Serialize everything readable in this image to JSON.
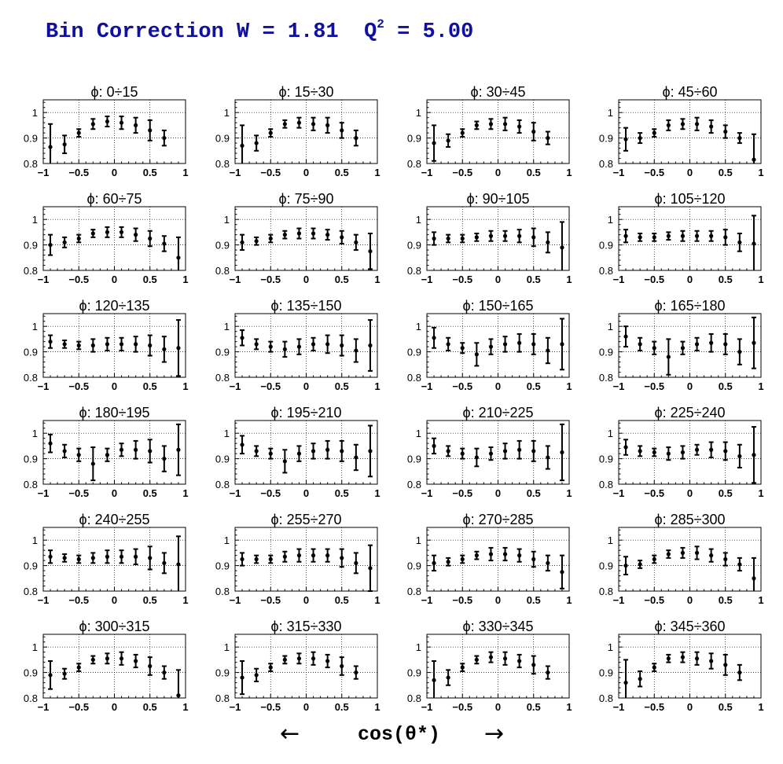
{
  "title": {
    "prefix": "Bin Correction W = 1.81  Q",
    "sup": "2",
    "suffix": " = 5.00"
  },
  "axis_caption": {
    "text": "cos(θ*)",
    "left_arrow": "←",
    "right_arrow": "→"
  },
  "chart_data": {
    "type": "scatter",
    "x_ticks": [
      "−1",
      "−0.5",
      "0",
      "0.5",
      "1"
    ],
    "y_ticks": [
      "0.8",
      "0.9",
      "1"
    ],
    "xlim": [
      -1,
      1
    ],
    "ylim": [
      0.8,
      1.05
    ],
    "grid": true,
    "x": [
      -0.9,
      -0.7,
      -0.5,
      -0.3,
      -0.1,
      0.1,
      0.3,
      0.5,
      0.7,
      0.9
    ],
    "panels": [
      {
        "title": "ϕ:  0÷15",
        "y": [
          0.865,
          0.875,
          0.92,
          0.955,
          0.965,
          0.96,
          0.95,
          0.93,
          0.9,
          null
        ],
        "err": [
          0.09,
          0.035,
          0.015,
          0.02,
          0.02,
          0.025,
          0.03,
          0.04,
          0.03,
          null
        ]
      },
      {
        "title": "ϕ:  15÷30",
        "y": [
          0.87,
          0.88,
          0.92,
          0.955,
          0.96,
          0.955,
          0.95,
          0.93,
          0.9,
          null
        ],
        "err": [
          0.08,
          0.03,
          0.015,
          0.015,
          0.02,
          0.025,
          0.03,
          0.03,
          0.03,
          null
        ]
      },
      {
        "title": "ϕ:  30÷45",
        "y": [
          0.88,
          0.89,
          0.92,
          0.95,
          0.955,
          0.955,
          0.945,
          0.925,
          0.9,
          null
        ],
        "err": [
          0.07,
          0.025,
          0.015,
          0.015,
          0.02,
          0.025,
          0.025,
          0.035,
          0.025,
          null
        ]
      },
      {
        "title": "ϕ:  45÷60",
        "y": [
          0.895,
          0.9,
          0.92,
          0.95,
          0.955,
          0.955,
          0.945,
          0.925,
          0.9,
          0.815
        ],
        "err": [
          0.045,
          0.02,
          0.015,
          0.02,
          0.02,
          0.025,
          0.025,
          0.025,
          0.02,
          0.1
        ]
      },
      {
        "title": "ϕ:  60÷75",
        "y": [
          0.9,
          0.91,
          0.925,
          0.945,
          0.95,
          0.95,
          0.94,
          0.925,
          0.905,
          0.85
        ],
        "err": [
          0.04,
          0.02,
          0.015,
          0.015,
          0.02,
          0.02,
          0.025,
          0.03,
          0.03,
          0.08
        ]
      },
      {
        "title": "ϕ:  75÷90",
        "y": [
          0.91,
          0.915,
          0.925,
          0.94,
          0.945,
          0.945,
          0.94,
          0.93,
          0.91,
          0.875
        ],
        "err": [
          0.03,
          0.015,
          0.015,
          0.015,
          0.02,
          0.02,
          0.02,
          0.025,
          0.03,
          0.07
        ]
      },
      {
        "title": "ϕ:  90÷105",
        "y": [
          0.925,
          0.925,
          0.925,
          0.93,
          0.935,
          0.935,
          0.935,
          0.93,
          0.91,
          0.89
        ],
        "err": [
          0.025,
          0.015,
          0.015,
          0.015,
          0.02,
          0.02,
          0.025,
          0.035,
          0.04,
          0.1
        ]
      },
      {
        "title": "ϕ: 105÷120",
        "y": [
          0.935,
          0.93,
          0.93,
          0.935,
          0.935,
          0.935,
          0.935,
          0.93,
          0.91,
          0.905
        ],
        "err": [
          0.025,
          0.015,
          0.015,
          0.015,
          0.02,
          0.02,
          0.02,
          0.03,
          0.035,
          0.11
        ]
      },
      {
        "title": "ϕ: 120÷135",
        "y": [
          0.94,
          0.93,
          0.925,
          0.925,
          0.93,
          0.93,
          0.93,
          0.925,
          0.91,
          0.915
        ],
        "err": [
          0.025,
          0.015,
          0.015,
          0.025,
          0.025,
          0.025,
          0.03,
          0.04,
          0.05,
          0.11
        ]
      },
      {
        "title": "ϕ: 135÷150",
        "y": [
          0.955,
          0.93,
          0.92,
          0.91,
          0.92,
          0.93,
          0.93,
          0.925,
          0.905,
          0.925
        ],
        "err": [
          0.03,
          0.02,
          0.02,
          0.03,
          0.03,
          0.025,
          0.035,
          0.04,
          0.045,
          0.1
        ]
      },
      {
        "title": "ϕ: 150÷165",
        "y": [
          0.955,
          0.93,
          0.915,
          0.89,
          0.92,
          0.93,
          0.935,
          0.93,
          0.905,
          0.93
        ],
        "err": [
          0.04,
          0.025,
          0.02,
          0.045,
          0.03,
          0.03,
          0.035,
          0.04,
          0.05,
          0.1
        ]
      },
      {
        "title": "ϕ: 165÷180",
        "y": [
          0.96,
          0.93,
          0.915,
          0.88,
          0.915,
          0.93,
          0.935,
          0.93,
          0.9,
          0.935
        ],
        "err": [
          0.04,
          0.025,
          0.025,
          0.07,
          0.025,
          0.025,
          0.035,
          0.04,
          0.05,
          0.1
        ]
      },
      {
        "title": "ϕ: 180÷195",
        "y": [
          0.96,
          0.93,
          0.915,
          0.88,
          0.915,
          0.935,
          0.935,
          0.93,
          0.9,
          0.935
        ],
        "err": [
          0.035,
          0.025,
          0.025,
          0.065,
          0.025,
          0.025,
          0.035,
          0.045,
          0.05,
          0.1
        ]
      },
      {
        "title": "ϕ: 195÷210",
        "y": [
          0.955,
          0.93,
          0.92,
          0.89,
          0.92,
          0.93,
          0.935,
          0.93,
          0.905,
          0.93
        ],
        "err": [
          0.035,
          0.02,
          0.02,
          0.045,
          0.03,
          0.03,
          0.035,
          0.04,
          0.05,
          0.1
        ]
      },
      {
        "title": "ϕ: 210÷225",
        "y": [
          0.95,
          0.93,
          0.92,
          0.905,
          0.92,
          0.93,
          0.935,
          0.93,
          0.905,
          0.925
        ],
        "err": [
          0.03,
          0.02,
          0.02,
          0.035,
          0.025,
          0.03,
          0.035,
          0.04,
          0.045,
          0.11
        ]
      },
      {
        "title": "ϕ: 225÷240",
        "y": [
          0.945,
          0.93,
          0.925,
          0.92,
          0.925,
          0.935,
          0.935,
          0.93,
          0.91,
          0.915
        ],
        "err": [
          0.03,
          0.02,
          0.015,
          0.025,
          0.025,
          0.02,
          0.03,
          0.035,
          0.045,
          0.11
        ]
      },
      {
        "title": "ϕ: 240÷255",
        "y": [
          0.935,
          0.93,
          0.925,
          0.93,
          0.935,
          0.935,
          0.935,
          0.93,
          0.91,
          0.905
        ],
        "err": [
          0.025,
          0.015,
          0.015,
          0.02,
          0.025,
          0.025,
          0.03,
          0.045,
          0.04,
          0.11
        ]
      },
      {
        "title": "ϕ: 255÷270",
        "y": [
          0.925,
          0.925,
          0.925,
          0.935,
          0.94,
          0.94,
          0.94,
          0.93,
          0.91,
          0.89
        ],
        "err": [
          0.025,
          0.015,
          0.015,
          0.02,
          0.025,
          0.025,
          0.025,
          0.035,
          0.04,
          0.09
        ]
      },
      {
        "title": "ϕ: 270÷285",
        "y": [
          0.91,
          0.915,
          0.925,
          0.94,
          0.945,
          0.945,
          0.94,
          0.925,
          0.91,
          0.875
        ],
        "err": [
          0.03,
          0.015,
          0.015,
          0.015,
          0.025,
          0.025,
          0.025,
          0.03,
          0.03,
          0.065
        ]
      },
      {
        "title": "ϕ: 285÷300",
        "y": [
          0.9,
          0.905,
          0.925,
          0.945,
          0.95,
          0.95,
          0.94,
          0.925,
          0.905,
          0.85
        ],
        "err": [
          0.035,
          0.015,
          0.015,
          0.015,
          0.02,
          0.025,
          0.025,
          0.025,
          0.025,
          0.08
        ]
      },
      {
        "title": "ϕ: 300÷315",
        "y": [
          0.89,
          0.895,
          0.92,
          0.95,
          0.955,
          0.955,
          0.945,
          0.925,
          0.9,
          0.81
        ],
        "err": [
          0.055,
          0.02,
          0.015,
          0.015,
          0.02,
          0.025,
          0.025,
          0.035,
          0.025,
          0.1
        ]
      },
      {
        "title": "ϕ: 315÷330",
        "y": [
          0.88,
          0.89,
          0.92,
          0.95,
          0.955,
          0.955,
          0.945,
          0.925,
          0.9,
          null
        ],
        "err": [
          0.065,
          0.025,
          0.015,
          0.015,
          0.02,
          0.025,
          0.025,
          0.035,
          0.025,
          null
        ]
      },
      {
        "title": "ϕ: 330÷345",
        "y": [
          0.87,
          0.88,
          0.92,
          0.95,
          0.96,
          0.955,
          0.945,
          0.93,
          0.9,
          null
        ],
        "err": [
          0.075,
          0.03,
          0.015,
          0.015,
          0.02,
          0.025,
          0.025,
          0.035,
          0.025,
          null
        ]
      },
      {
        "title": "ϕ: 345÷360",
        "y": [
          0.86,
          0.875,
          0.92,
          0.955,
          0.96,
          0.955,
          0.945,
          0.93,
          0.9,
          null
        ],
        "err": [
          0.09,
          0.03,
          0.015,
          0.015,
          0.02,
          0.025,
          0.03,
          0.04,
          0.03,
          null
        ]
      }
    ]
  }
}
